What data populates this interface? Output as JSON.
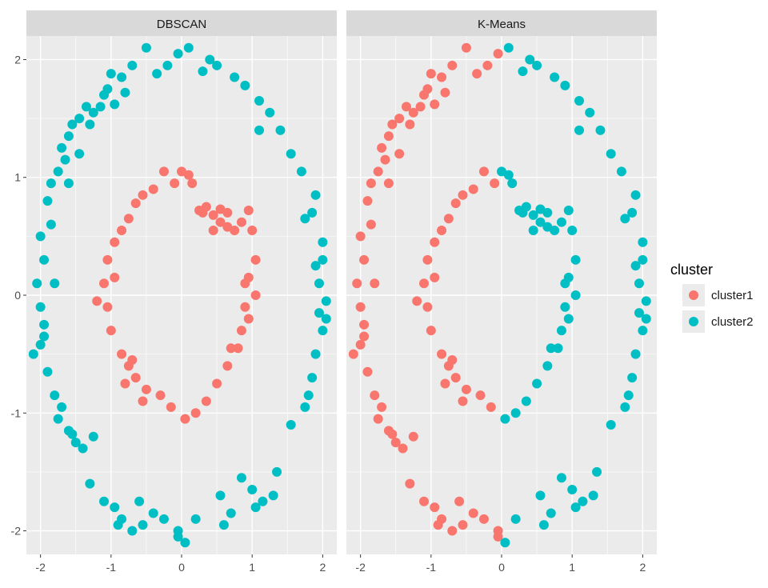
{
  "chart_data": {
    "type": "scatter",
    "facets": [
      "DBSCAN",
      "K-Means"
    ],
    "xlim": [
      -2.2,
      2.2
    ],
    "ylim": [
      -2.2,
      2.2
    ],
    "x_ticks": [
      -2,
      -1,
      0,
      1,
      2
    ],
    "y_ticks": [
      -2,
      -1,
      0,
      1,
      2
    ],
    "grid": true,
    "legend": {
      "title": "cluster",
      "placement": "right",
      "entries": [
        {
          "name": "cluster1",
          "color": "#F8766D"
        },
        {
          "name": "cluster2",
          "color": "#00BFC4"
        }
      ]
    },
    "points_outer": [
      [
        -0.5,
        2.1
      ],
      [
        -0.7,
        1.95
      ],
      [
        -0.85,
        1.85
      ],
      [
        -1.0,
        1.88
      ],
      [
        -1.05,
        1.75
      ],
      [
        -0.8,
        1.72
      ],
      [
        -1.15,
        1.6
      ],
      [
        -1.25,
        1.55
      ],
      [
        -1.35,
        1.6
      ],
      [
        -1.45,
        1.5
      ],
      [
        -1.55,
        1.45
      ],
      [
        -1.6,
        1.35
      ],
      [
        -1.7,
        1.25
      ],
      [
        -1.75,
        1.05
      ],
      [
        -1.85,
        0.95
      ],
      [
        -1.9,
        0.8
      ],
      [
        -1.85,
        0.6
      ],
      [
        -2.0,
        0.5
      ],
      [
        -1.95,
        0.3
      ],
      [
        -2.05,
        0.1
      ],
      [
        -2.0,
        -0.1
      ],
      [
        -1.95,
        -0.35
      ],
      [
        -2.1,
        -0.5
      ],
      [
        -1.9,
        -0.65
      ],
      [
        -1.8,
        -0.85
      ],
      [
        -1.75,
        -1.05
      ],
      [
        -1.6,
        -1.15
      ],
      [
        -1.5,
        -1.25
      ],
      [
        -1.4,
        -1.3
      ],
      [
        -1.3,
        -1.6
      ],
      [
        -1.1,
        -1.75
      ],
      [
        -0.95,
        -1.8
      ],
      [
        -0.85,
        -1.9
      ],
      [
        -0.7,
        -2.0
      ],
      [
        -0.55,
        -1.95
      ],
      [
        -0.4,
        -1.85
      ],
      [
        -0.25,
        -1.9
      ],
      [
        -0.05,
        -2.05
      ],
      [
        0.05,
        -2.1
      ],
      [
        0.2,
        -1.9
      ],
      [
        0.55,
        -1.7
      ],
      [
        0.85,
        -1.55
      ],
      [
        1.0,
        -1.65
      ],
      [
        1.15,
        -1.75
      ],
      [
        1.35,
        -1.5
      ],
      [
        1.55,
        -1.1
      ],
      [
        1.75,
        -0.95
      ],
      [
        1.85,
        -0.7
      ],
      [
        1.9,
        -0.5
      ],
      [
        2.0,
        -0.3
      ],
      [
        2.05,
        -0.05
      ],
      [
        1.95,
        0.1
      ],
      [
        1.9,
        0.25
      ],
      [
        2.0,
        0.45
      ],
      [
        1.85,
        0.7
      ],
      [
        1.9,
        0.85
      ],
      [
        1.7,
        1.05
      ],
      [
        1.55,
        1.2
      ],
      [
        1.4,
        1.4
      ],
      [
        1.25,
        1.55
      ],
      [
        1.1,
        1.65
      ],
      [
        0.9,
        1.78
      ],
      [
        0.75,
        1.85
      ],
      [
        0.5,
        1.95
      ],
      [
        0.4,
        2.0
      ],
      [
        0.3,
        1.9
      ],
      [
        0.1,
        2.1
      ],
      [
        -0.05,
        2.05
      ],
      [
        -0.2,
        1.95
      ],
      [
        -0.35,
        1.88
      ],
      [
        -1.65,
        1.15
      ],
      [
        -1.8,
        0.1
      ],
      [
        -1.95,
        -0.25
      ],
      [
        -1.7,
        -0.95
      ],
      [
        -1.25,
        -1.2
      ],
      [
        -0.6,
        -1.75
      ],
      [
        0.6,
        -1.95
      ],
      [
        1.05,
        -1.8
      ],
      [
        1.95,
        -0.15
      ],
      [
        1.75,
        0.65
      ],
      [
        -1.45,
        1.2
      ],
      [
        1.1,
        1.4
      ],
      [
        -1.3,
        1.45
      ],
      [
        -1.1,
        1.7
      ],
      [
        -0.95,
        1.62
      ],
      [
        -1.6,
        0.95
      ],
      [
        -2.0,
        -0.42
      ],
      [
        -1.55,
        -1.18
      ],
      [
        -0.9,
        -1.95
      ],
      [
        -0.05,
        -2.0
      ],
      [
        0.7,
        -1.85
      ],
      [
        1.3,
        -1.7
      ],
      [
        1.8,
        -0.85
      ],
      [
        2.05,
        -0.2
      ],
      [
        2.0,
        0.3
      ]
    ],
    "points_inner": [
      [
        -0.25,
        1.05
      ],
      [
        -0.1,
        0.95
      ],
      [
        0.0,
        1.05
      ],
      [
        0.1,
        1.02
      ],
      [
        0.15,
        0.95
      ],
      [
        0.3,
        0.7
      ],
      [
        0.45,
        0.68
      ],
      [
        0.55,
        0.62
      ],
      [
        0.65,
        0.58
      ],
      [
        0.75,
        0.55
      ],
      [
        0.85,
        0.62
      ],
      [
        0.95,
        0.72
      ],
      [
        1.0,
        0.55
      ],
      [
        1.05,
        0.3
      ],
      [
        0.95,
        0.15
      ],
      [
        0.9,
        -0.1
      ],
      [
        0.85,
        -0.3
      ],
      [
        0.8,
        -0.45
      ],
      [
        0.65,
        -0.6
      ],
      [
        0.5,
        -0.75
      ],
      [
        0.35,
        -0.9
      ],
      [
        0.2,
        -1.0
      ],
      [
        0.05,
        -1.05
      ],
      [
        -0.15,
        -0.95
      ],
      [
        -0.3,
        -0.85
      ],
      [
        -0.5,
        -0.8
      ],
      [
        -0.65,
        -0.7
      ],
      [
        -0.75,
        -0.6
      ],
      [
        -0.85,
        -0.5
      ],
      [
        -1.0,
        -0.3
      ],
      [
        -1.05,
        -0.1
      ],
      [
        -1.1,
        0.1
      ],
      [
        -1.05,
        0.3
      ],
      [
        -0.95,
        0.45
      ],
      [
        -0.85,
        0.55
      ],
      [
        -0.75,
        0.65
      ],
      [
        -0.65,
        0.78
      ],
      [
        -0.55,
        0.85
      ],
      [
        -0.4,
        0.9
      ],
      [
        0.35,
        0.75
      ],
      [
        0.55,
        0.73
      ],
      [
        0.65,
        0.7
      ],
      [
        0.45,
        0.55
      ],
      [
        -0.95,
        0.15
      ],
      [
        -1.2,
        -0.05
      ],
      [
        -0.55,
        -0.9
      ],
      [
        0.9,
        0.1
      ],
      [
        0.7,
        -0.45
      ],
      [
        -0.8,
        -0.75
      ],
      [
        -0.7,
        -0.55
      ],
      [
        0.25,
        0.72
      ],
      [
        1.05,
        0.0
      ],
      [
        0.95,
        -0.2
      ]
    ]
  }
}
